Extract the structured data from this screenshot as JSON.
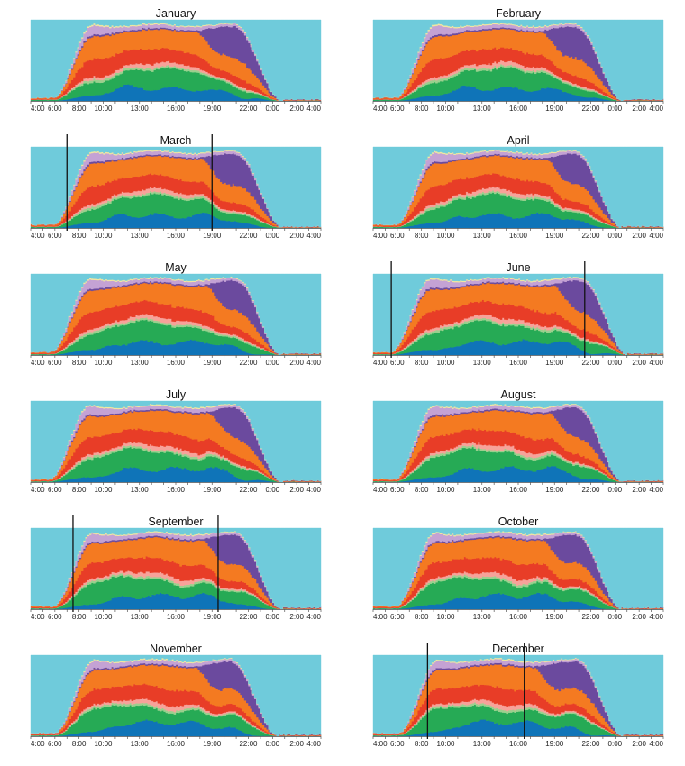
{
  "chart_data": {
    "type": "area",
    "stacked": true,
    "x_ticks": [
      "4:00",
      "6:00",
      "8:00",
      "10:00",
      "13:00",
      "16:00",
      "19:00",
      "22:00",
      "0:00",
      "2:00",
      "4:00"
    ],
    "x_range": [
      "4:00",
      "4:00 (+1 day)"
    ],
    "y_range": [
      0,
      1
    ],
    "grid": false,
    "legend": "none",
    "category_colors": [
      "#0f74b8",
      "#26aa55",
      "#9bd08e",
      "#f7a29a",
      "#e83d27",
      "#f47a21",
      "#6b4a9e",
      "#c4a2d4",
      "#f2e8a0",
      "#6fcbdb"
    ],
    "panels": [
      {
        "title": "January",
        "markers": [],
        "dark_start": 5.8,
        "dark_end": 22.5,
        "deepest": 20.9,
        "purple_from": 17.6
      },
      {
        "title": "February",
        "markers": [],
        "dark_start": 5.8,
        "dark_end": 22.4,
        "deepest": 20.8,
        "purple_from": 17.8
      },
      {
        "title": "March",
        "markers": [
          "7:00",
          "19:00"
        ],
        "dark_start": 5.8,
        "dark_end": 22.6,
        "deepest": 21.0,
        "purple_from": 18.0
      },
      {
        "title": "April",
        "markers": [],
        "dark_start": 5.8,
        "dark_end": 22.3,
        "deepest": 20.8,
        "purple_from": 18.2
      },
      {
        "title": "May",
        "markers": [],
        "dark_start": 5.6,
        "dark_end": 22.4,
        "deepest": 21.1,
        "purple_from": 18.4
      },
      {
        "title": "June",
        "markers": [
          "5:30",
          "21:30"
        ],
        "dark_start": 5.4,
        "dark_end": 22.8,
        "deepest": 21.3,
        "purple_from": 18.8
      },
      {
        "title": "July",
        "markers": [],
        "dark_start": 5.5,
        "dark_end": 22.5,
        "deepest": 21.0,
        "purple_from": 18.6
      },
      {
        "title": "August",
        "markers": [],
        "dark_start": 5.7,
        "dark_end": 22.4,
        "deepest": 20.9,
        "purple_from": 18.4
      },
      {
        "title": "September",
        "markers": [
          "7:30",
          "19:30"
        ],
        "dark_start": 5.8,
        "dark_end": 22.5,
        "deepest": 21.0,
        "purple_from": 18.1
      },
      {
        "title": "October",
        "markers": [],
        "dark_start": 5.8,
        "dark_end": 22.3,
        "deepest": 20.8,
        "purple_from": 17.9
      },
      {
        "title": "November",
        "markers": [],
        "dark_start": 5.9,
        "dark_end": 22.2,
        "deepest": 20.6,
        "purple_from": 17.5
      },
      {
        "title": "December",
        "markers": [
          "8:30",
          "16:30"
        ],
        "dark_start": 6.0,
        "dark_end": 22.4,
        "deepest": 20.9,
        "purple_from": 17.2
      }
    ]
  }
}
